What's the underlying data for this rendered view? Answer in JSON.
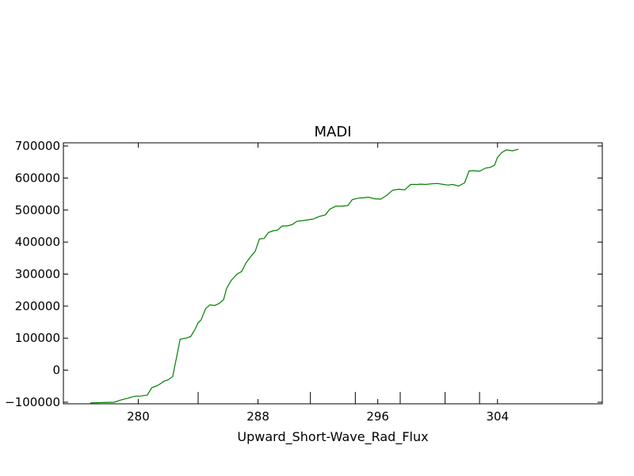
{
  "chart_data": {
    "type": "line",
    "title": "MADI",
    "xlabel": "Upward_Short-Wave_Rad_Flux",
    "ylabel": "",
    "xlim": [
      275,
      311
    ],
    "ylim": [
      -105000,
      710000
    ],
    "xticks": [
      280,
      288,
      296,
      304
    ],
    "xtick_labels": [
      "280",
      "288",
      "296",
      "304"
    ],
    "yticks": [
      -100000,
      0,
      100000,
      200000,
      300000,
      400000,
      500000,
      600000,
      700000
    ],
    "ytick_labels": [
      "−100000",
      "0",
      "100000",
      "200000",
      "300000",
      "400000",
      "500000",
      "600000",
      "700000"
    ],
    "bottom_markers_x": [
      284,
      291.5,
      294.5,
      297.5,
      300.5,
      302.8
    ],
    "grid": false,
    "legend": "none",
    "series": [
      {
        "color": "#008000",
        "x": [
          276.8,
          277.6,
          278.4,
          278.9,
          279.3,
          279.7,
          279.9,
          280.1,
          280.6,
          280.9,
          281.3,
          281.7,
          282.0,
          282.3,
          282.6,
          282.8,
          283.2,
          283.5,
          283.8,
          284.0,
          284.2,
          284.5,
          284.8,
          285.1,
          285.4,
          285.7,
          285.9,
          286.2,
          286.6,
          286.9,
          287.2,
          287.6,
          287.8,
          288.1,
          288.4,
          288.7,
          289.0,
          289.3,
          289.6,
          290.0,
          290.3,
          290.6,
          291.0,
          291.4,
          291.7,
          292.1,
          292.5,
          292.8,
          293.2,
          293.6,
          294.0,
          294.3,
          294.7,
          295.0,
          295.4,
          295.8,
          296.2,
          296.6,
          297.0,
          297.4,
          297.8,
          298.2,
          298.6,
          298.9,
          299.2,
          299.6,
          300.0,
          300.4,
          300.7,
          301.0,
          301.4,
          301.8,
          302.1,
          302.4,
          302.8,
          303.2,
          303.5,
          303.8,
          304.0,
          304.3,
          304.6,
          305.0,
          305.4
        ],
        "y": [
          -102000,
          -101000,
          -100000,
          -92000,
          -88000,
          -82000,
          -81000,
          -81000,
          -78000,
          -55000,
          -48000,
          -35000,
          -30000,
          -20000,
          50000,
          97000,
          100000,
          105000,
          128000,
          148000,
          157000,
          192000,
          204000,
          202000,
          208000,
          220000,
          255000,
          280000,
          300000,
          308000,
          335000,
          360000,
          370000,
          410000,
          411000,
          430000,
          435000,
          437000,
          450000,
          451000,
          455000,
          465000,
          467000,
          470000,
          472000,
          480000,
          485000,
          503000,
          512000,
          512000,
          514000,
          533000,
          537000,
          538000,
          540000,
          535000,
          534000,
          546000,
          562000,
          565000,
          563000,
          580000,
          580000,
          581000,
          580000,
          582000,
          583000,
          580000,
          578000,
          580000,
          575000,
          585000,
          622000,
          623000,
          621000,
          631000,
          633000,
          640000,
          665000,
          680000,
          688000,
          685000,
          690000
        ]
      }
    ]
  }
}
